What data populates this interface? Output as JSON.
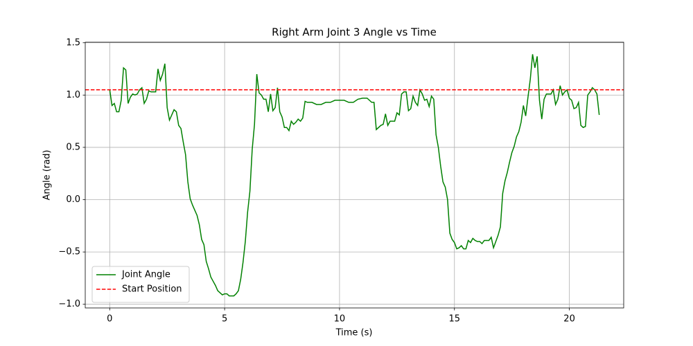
{
  "chart_data": {
    "type": "line",
    "title": "Right Arm Joint 3 Angle vs Time",
    "xlabel": "Time (s)",
    "ylabel": "Angle (rad)",
    "x": [
      0,
      0.1,
      0.2,
      0.3,
      0.4,
      0.5,
      0.6,
      0.7,
      0.8,
      0.9,
      1.0,
      1.1,
      1.2,
      1.3,
      1.4,
      1.5,
      1.6,
      1.7,
      1.8,
      1.9,
      2.0,
      2.1,
      2.2,
      2.3,
      2.4,
      2.5,
      2.6,
      2.7,
      2.8,
      2.9,
      3.0,
      3.1,
      3.2,
      3.3,
      3.4,
      3.5,
      3.6,
      3.7,
      3.8,
      3.9,
      4.0,
      4.1,
      4.2,
      4.3,
      4.4,
      4.5,
      4.6,
      4.7,
      4.8,
      4.9,
      5.0,
      5.1,
      5.2,
      5.3,
      5.4,
      5.5,
      5.6,
      5.7,
      5.8,
      5.9,
      6.0,
      6.1,
      6.2,
      6.3,
      6.4,
      6.5,
      6.6,
      6.7,
      6.8,
      6.9,
      7.0,
      7.1,
      7.2,
      7.3,
      7.4,
      7.5,
      7.6,
      7.7,
      7.8,
      7.9,
      8.0,
      8.1,
      8.2,
      8.3,
      8.4,
      8.5,
      8.6,
      8.8,
      9.0,
      9.2,
      9.4,
      9.6,
      9.8,
      10.0,
      10.2,
      10.4,
      10.6,
      10.8,
      11.0,
      11.2,
      11.4,
      11.5,
      11.6,
      11.8,
      11.9,
      12.0,
      12.1,
      12.2,
      12.4,
      12.5,
      12.6,
      12.7,
      12.8,
      12.9,
      13.0,
      13.1,
      13.2,
      13.3,
      13.4,
      13.5,
      13.6,
      13.7,
      13.8,
      13.9,
      14.0,
      14.1,
      14.2,
      14.3,
      14.4,
      14.5,
      14.6,
      14.7,
      14.8,
      14.9,
      15.0,
      15.1,
      15.2,
      15.3,
      15.4,
      15.5,
      15.6,
      15.7,
      15.8,
      15.9,
      16.0,
      16.1,
      16.2,
      16.3,
      16.4,
      16.5,
      16.6,
      16.7,
      16.8,
      16.9,
      17.0,
      17.1,
      17.2,
      17.3,
      17.4,
      17.5,
      17.6,
      17.7,
      17.8,
      17.9,
      18.0,
      18.1,
      18.2,
      18.3,
      18.4,
      18.5,
      18.6,
      18.7,
      18.8,
      18.9,
      19.0,
      19.1,
      19.2,
      19.3,
      19.4,
      19.5,
      19.6,
      19.7,
      19.8,
      19.9,
      20.0,
      20.1,
      20.2,
      20.3,
      20.4,
      20.5,
      20.6,
      20.7,
      20.8,
      20.9,
      21.0,
      21.1,
      21.2,
      21.3
    ],
    "series": [
      {
        "name": "Joint Angle",
        "color": "green",
        "values": [
          1.05,
          0.9,
          0.92,
          0.84,
          0.84,
          0.95,
          1.26,
          1.24,
          0.92,
          0.98,
          1.01,
          1.0,
          1.01,
          1.05,
          1.07,
          0.92,
          0.96,
          1.04,
          1.03,
          1.03,
          1.03,
          1.25,
          1.14,
          1.2,
          1.3,
          0.88,
          0.76,
          0.81,
          0.86,
          0.84,
          0.71,
          0.68,
          0.55,
          0.43,
          0.17,
          0.01,
          -0.05,
          -0.1,
          -0.15,
          -0.24,
          -0.38,
          -0.43,
          -0.59,
          -0.66,
          -0.74,
          -0.78,
          -0.82,
          -0.87,
          -0.89,
          -0.91,
          -0.9,
          -0.9,
          -0.92,
          -0.92,
          -0.92,
          -0.9,
          -0.87,
          -0.76,
          -0.6,
          -0.4,
          -0.12,
          0.08,
          0.48,
          0.72,
          1.2,
          1.02,
          1.0,
          0.96,
          0.96,
          0.84,
          1.01,
          0.85,
          0.88,
          1.07,
          0.84,
          0.79,
          0.69,
          0.69,
          0.66,
          0.75,
          0.72,
          0.74,
          0.77,
          0.75,
          0.78,
          0.94,
          0.93,
          0.93,
          0.91,
          0.91,
          0.93,
          0.93,
          0.95,
          0.95,
          0.95,
          0.93,
          0.93,
          0.96,
          0.97,
          0.97,
          0.93,
          0.93,
          0.67,
          0.71,
          0.72,
          0.82,
          0.71,
          0.75,
          0.75,
          0.83,
          0.81,
          1.01,
          1.03,
          1.03,
          0.85,
          0.87,
          0.99,
          0.93,
          0.9,
          1.05,
          1.01,
          0.95,
          0.96,
          0.89,
          0.99,
          0.96,
          0.62,
          0.5,
          0.32,
          0.17,
          0.12,
          0.0,
          -0.32,
          -0.38,
          -0.41,
          -0.47,
          -0.46,
          -0.44,
          -0.47,
          -0.47,
          -0.39,
          -0.41,
          -0.37,
          -0.39,
          -0.4,
          -0.4,
          -0.42,
          -0.39,
          -0.39,
          -0.39,
          -0.36,
          -0.46,
          -0.4,
          -0.34,
          -0.26,
          0.06,
          0.18,
          0.26,
          0.36,
          0.45,
          0.51,
          0.6,
          0.65,
          0.74,
          0.9,
          0.8,
          0.98,
          1.15,
          1.39,
          1.26,
          1.37,
          0.95,
          0.77,
          0.96,
          1.01,
          1.01,
          1.01,
          1.05,
          0.91,
          0.96,
          1.09,
          1.0,
          1.03,
          1.05,
          0.97,
          0.95,
          0.87,
          0.88,
          0.93,
          0.71,
          0.69,
          0.7,
          1.0,
          1.03,
          1.07,
          1.05,
          1.01,
          0.81
        ]
      }
    ],
    "hlines": [
      {
        "name": "Start Position",
        "y": 1.05,
        "color": "red",
        "style": "dashed"
      }
    ],
    "xlim": [
      -1.065,
      22.365
    ],
    "ylim": [
      -1.035,
      1.505
    ],
    "xticks": [
      0,
      5,
      10,
      15,
      20
    ],
    "yticks": [
      {
        "value": -1.0,
        "label": "−1.0"
      },
      {
        "value": -0.5,
        "label": "−0.5"
      },
      {
        "value": 0.0,
        "label": "0.0"
      },
      {
        "value": 0.5,
        "label": "0.5"
      },
      {
        "value": 1.0,
        "label": "1.0"
      },
      {
        "value": 1.5,
        "label": "1.5"
      }
    ],
    "grid": true,
    "legend": "lower left"
  }
}
